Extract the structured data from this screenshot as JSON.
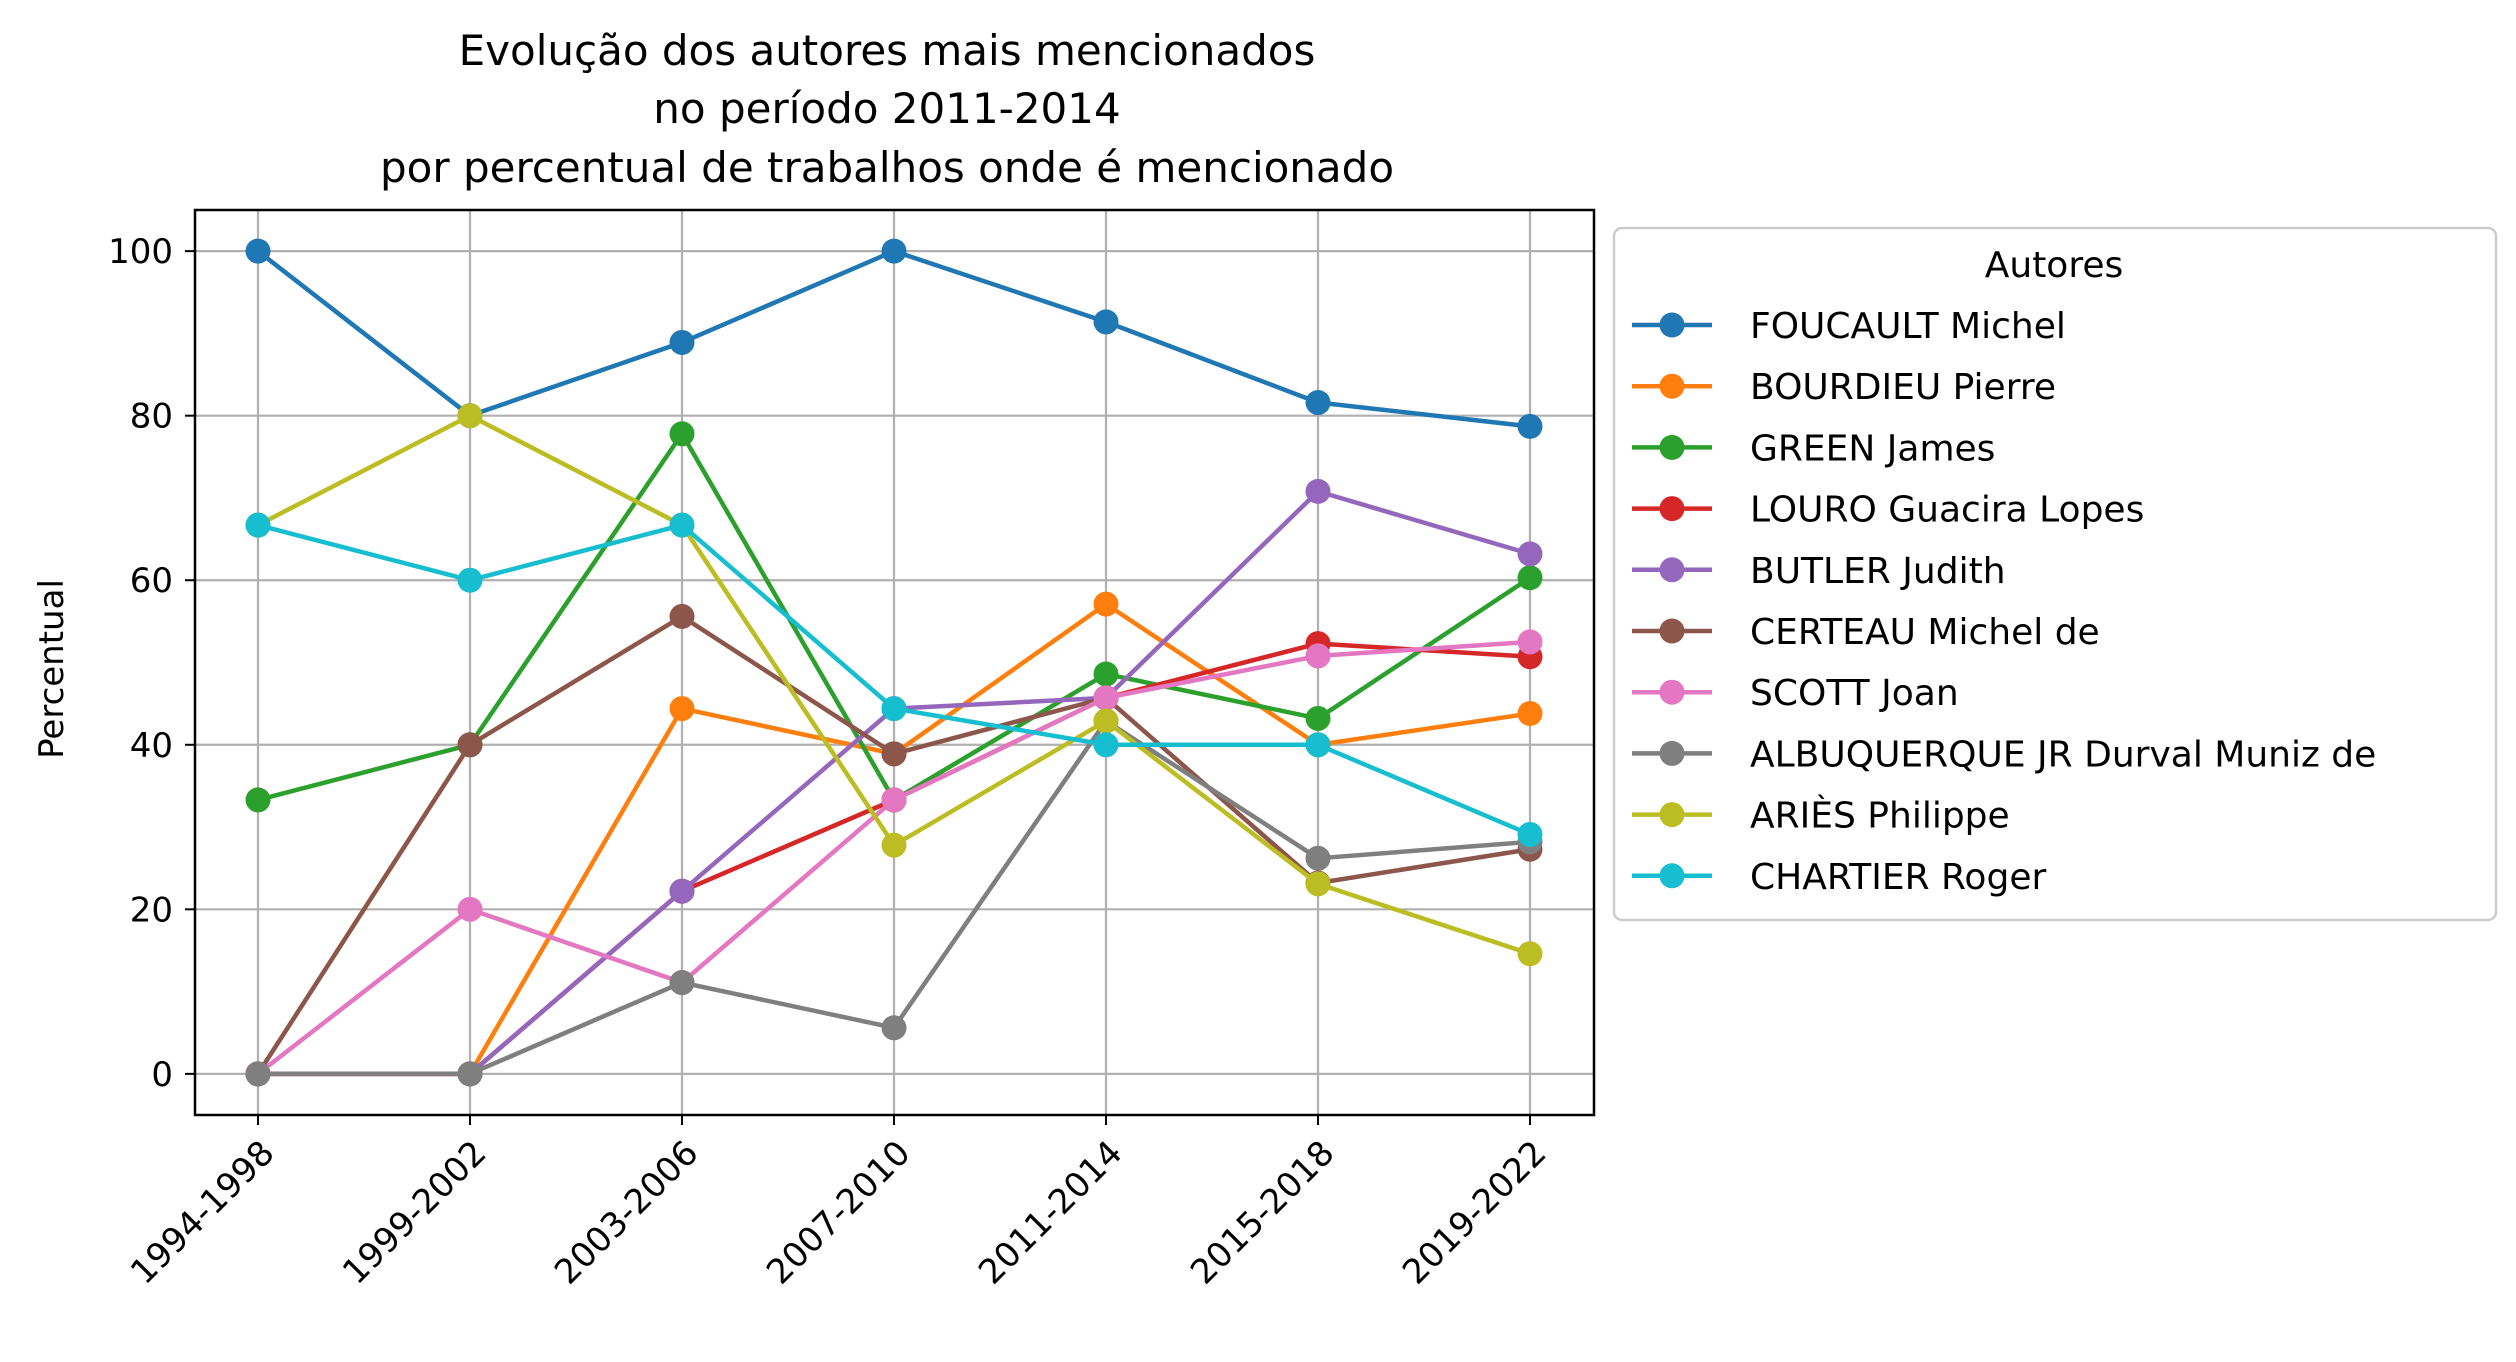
{
  "chart_data": {
    "type": "line",
    "title_lines": [
      "Evolução dos autores mais mencionados",
      "no período 2011-2014",
      "por percentual de trabalhos onde é mencionado"
    ],
    "xlabel": "",
    "ylabel": "Percentual",
    "categories": [
      "1994-1998",
      "1999-2002",
      "2003-2006",
      "2007-2010",
      "2011-2014",
      "2015-2018",
      "2019-2022"
    ],
    "ylim": [
      -5,
      105
    ],
    "yticks": [
      0,
      20,
      40,
      60,
      80,
      100
    ],
    "grid": true,
    "legend_title": "Autores",
    "legend_position": "outside-right-top",
    "series": [
      {
        "name": "FOUCAULT Michel",
        "color": "#1f77b4",
        "values": [
          100,
          80,
          88.9,
          100,
          91.4,
          81.6,
          78.7
        ]
      },
      {
        "name": "BOURDIEU Pierre",
        "color": "#ff7f0e",
        "values": [
          0,
          0,
          44.4,
          38.9,
          57.1,
          40,
          43.8
        ]
      },
      {
        "name": "GREEN James",
        "color": "#2ca02c",
        "values": [
          33.3,
          40,
          77.8,
          33.3,
          48.6,
          43.2,
          60.3
        ]
      },
      {
        "name": "LOURO Guacira Lopes",
        "color": "#d62728",
        "values": [
          0,
          0,
          22.2,
          33.3,
          45.7,
          52.3,
          50.7
        ]
      },
      {
        "name": "BUTLER Judith",
        "color": "#9467bd",
        "values": [
          0,
          0,
          22.2,
          44.4,
          45.7,
          70.8,
          63.2
        ]
      },
      {
        "name": "CERTEAU Michel de",
        "color": "#8c564b",
        "values": [
          0,
          40,
          55.6,
          38.9,
          45.7,
          23.2,
          27.3
        ]
      },
      {
        "name": "SCOTT Joan",
        "color": "#e377c2",
        "values": [
          0,
          20,
          11.1,
          33.3,
          45.7,
          50.8,
          52.5
        ]
      },
      {
        "name": "ALBUQUERQUE JR Durval Muniz de",
        "color": "#7f7f7f",
        "values": [
          0,
          0,
          11.1,
          5.6,
          42.9,
          26.2,
          28.2
        ]
      },
      {
        "name": "ARIÈS Philippe",
        "color": "#bcbd22",
        "values": [
          66.7,
          80,
          66.7,
          27.8,
          42.9,
          23.1,
          14.6
        ]
      },
      {
        "name": "CHARTIER Roger",
        "color": "#17becf",
        "values": [
          66.7,
          60,
          66.7,
          44.4,
          40,
          40,
          29.1
        ]
      }
    ]
  }
}
